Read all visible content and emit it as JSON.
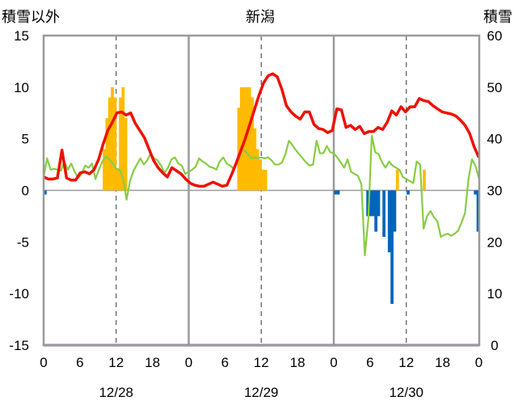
{
  "chart_data": {
    "type": "bar+line",
    "title": "新潟",
    "y_left_label": "積雪以外",
    "y_right_label": "積雪",
    "y_left_lim": [
      -15,
      15
    ],
    "y_left_ticks": [
      "15",
      "10",
      "5",
      "0",
      "-5",
      "-10",
      "-15"
    ],
    "y_right_lim": [
      0,
      60
    ],
    "y_right_ticks": [
      "60",
      "50",
      "40",
      "30",
      "20",
      "10",
      "0"
    ],
    "x_hour_ticks": [
      "0",
      "6",
      "12",
      "18",
      "0",
      "6",
      "12",
      "18",
      "0",
      "6",
      "12",
      "18",
      "0"
    ],
    "dates": [
      "12/28",
      "12/29",
      "12/30"
    ],
    "grid": "dashed vertical at 12h, solid vertical at 0h",
    "colors": {
      "red_line": "#ee1100",
      "green_line": "#88cc44",
      "positive_bar": "#ffbb00",
      "negative_bar": "#0066bb",
      "snow_depth_line": "#663399"
    },
    "bars": [
      -0.4,
      0,
      0,
      0,
      0,
      0,
      0,
      0,
      0,
      0,
      0,
      0,
      0,
      0,
      0,
      0,
      0,
      0,
      0,
      0,
      0,
      0,
      4,
      7,
      9,
      10,
      9,
      2,
      9,
      10,
      7,
      0,
      0,
      0,
      0,
      0,
      0,
      0,
      0,
      0,
      0,
      0,
      0,
      0,
      0,
      0,
      0,
      0,
      0,
      0,
      0,
      0,
      0,
      0,
      0,
      0,
      0,
      0,
      0,
      0,
      0,
      0,
      0,
      0,
      0,
      0,
      0,
      0,
      0,
      0,
      0,
      0,
      8,
      10,
      10,
      10,
      10,
      9,
      6,
      4,
      3,
      2,
      2,
      0,
      0,
      0,
      0,
      0,
      0,
      0,
      0,
      0,
      0,
      0,
      0,
      0,
      0,
      0,
      0,
      0,
      0,
      0,
      0,
      0,
      0,
      0,
      0,
      0,
      -0.4,
      -0.4,
      0,
      0,
      0,
      0,
      0,
      0,
      0,
      0,
      0,
      0,
      -2.5,
      -2.5,
      -2.5,
      -4,
      -2.5,
      0,
      -4.5,
      0,
      -6,
      -11,
      -4,
      2,
      0,
      0,
      0,
      -0.4,
      0,
      0,
      0,
      0,
      0,
      2,
      0,
      0,
      0,
      0,
      0,
      0,
      0,
      0,
      0,
      0,
      0,
      0,
      0,
      0,
      0,
      0,
      0,
      0,
      -0.4,
      -4
    ],
    "red_line": [
      1.3,
      1.1,
      1.1,
      1.2,
      3.9,
      1.2,
      1.0,
      1.0,
      1.7,
      1.8,
      1.6,
      2.0,
      3.0,
      4.5,
      5.8,
      6.6,
      7.5,
      7.6,
      7.3,
      7.5,
      6.5,
      5.8,
      5.1,
      4.0,
      2.9,
      2.2,
      1.7,
      1.3,
      2.2,
      1.9,
      1.6,
      1.1,
      0.7,
      0.5,
      0.4,
      0.4,
      0.6,
      0.8,
      0.6,
      0.4,
      0.5,
      1.5,
      2.6,
      3.8,
      5.0,
      6.4,
      7.8,
      9.2,
      10.4,
      11.1,
      11.3,
      11.0,
      9.8,
      8.2,
      7.6,
      7.2,
      6.9,
      7.6,
      7.6,
      6.4,
      6.0,
      5.9,
      5.6,
      5.8,
      7.9,
      7.8,
      6.1,
      6.3,
      5.9,
      6.2,
      5.5,
      5.7,
      5.7,
      6.1,
      5.9,
      6.6,
      7.7,
      7.3,
      8.1,
      7.6,
      8.1,
      8.1,
      8.9,
      8.7,
      8.6,
      8.2,
      7.9,
      7.6,
      7.5,
      7.4,
      7.2,
      6.8,
      6.3,
      5.5,
      4.2,
      3.2
    ],
    "green_line": [
      1.3,
      3.1,
      2.0,
      2.1,
      2.0,
      1.9,
      2.8,
      2.0,
      2.6,
      1.8,
      1.2,
      1.6,
      2.4,
      2.2,
      2.6,
      1.1,
      2.0,
      2.8,
      3.3,
      3.0,
      2.6,
      2.1,
      2.0,
      1.2,
      -0.9,
      0.9,
      1.9,
      2.5,
      3.1,
      2.5,
      2.9,
      3.6,
      3.1,
      2.9,
      2.4,
      1.7,
      2.2,
      3.0,
      3.2,
      2.6,
      2.4,
      1.6,
      1.8,
      2.0,
      2.3,
      3.1,
      2.8,
      2.6,
      2.3,
      2.2,
      2.0,
      2.8,
      3.2,
      2.6,
      2.4,
      2.1,
      2.8,
      3.7,
      3.9,
      3.6,
      3.1,
      3.2,
      3.1,
      3.2,
      3.1,
      3.2,
      2.9,
      2.5,
      2.5,
      2.7,
      3.5,
      4.8,
      4.4,
      3.9,
      3.5,
      3.1,
      2.7,
      2.4,
      2.5,
      4.8,
      3.6,
      3.6,
      4.3,
      3.7,
      3.6,
      3.2,
      2.7,
      2.2,
      3.0,
      1.8,
      1.6,
      1.4,
      0.6,
      -6.3,
      -2.8,
      5.3,
      3.7,
      3.5,
      2.7,
      2.2,
      2.8,
      2.4,
      2.2,
      2.0,
      1.3,
      1.1,
      0.9,
      0.7,
      2.8,
      2.5,
      -3.7,
      -2.5,
      -2.0,
      -2.6,
      -3.0,
      -4.5,
      -4.3,
      -4.2,
      -4.4,
      -4.2,
      -3.9,
      -3.1,
      -2.2,
      1.1,
      3.0,
      2.4,
      1.2
    ],
    "snow_depth": 0
  }
}
